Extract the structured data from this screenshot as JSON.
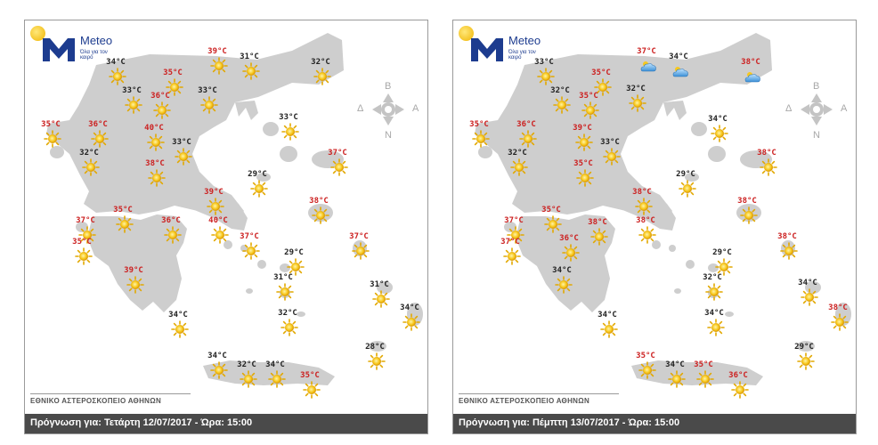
{
  "colors": {
    "land": "#cecece",
    "sea": "#ffffff",
    "hot": "#cc2020",
    "normal": "#222222",
    "footer": "#4a4a4a"
  },
  "logo": {
    "name": "Meteo",
    "tagline": "Όλα για τον καιρό"
  },
  "compass": {
    "north": "Β",
    "south": "Ν",
    "west": "Δ",
    "east": "Α"
  },
  "footer_caption": "ΕΘΝΙΚΟ ΑΣΤΕΡΟΣΚΟΠΕΙΟ ΑΘΗΝΩΝ",
  "panels": [
    {
      "forecast": "Πρόγνωση για: Τετάρτη 12/07/2017 - Ώρα:  15:00",
      "points": [
        {
          "t": "34°C",
          "hot": false,
          "icon": "sun-icon"
        },
        {
          "t": "39°C",
          "hot": true,
          "icon": "sun-icon"
        },
        {
          "t": "31°C",
          "hot": false,
          "icon": "sun-icon"
        },
        {
          "t": "32°C",
          "hot": false,
          "icon": "sun-icon"
        },
        {
          "t": "35°C",
          "hot": true,
          "icon": "sun-icon"
        },
        {
          "t": "33°C",
          "hot": false,
          "icon": "sun-icon"
        },
        {
          "t": "36°C",
          "hot": true,
          "icon": "sun-icon"
        },
        {
          "t": "33°C",
          "hot": false,
          "icon": "sun-icon"
        },
        {
          "t": "35°C",
          "hot": true,
          "icon": "sun-icon"
        },
        {
          "t": "36°C",
          "hot": true,
          "icon": "sun-icon"
        },
        {
          "t": "40°C",
          "hot": true,
          "icon": "sun-icon"
        },
        {
          "t": "33°C",
          "hot": false,
          "icon": "sun-icon"
        },
        {
          "t": "33°C",
          "hot": false,
          "icon": "sun-icon"
        },
        {
          "t": "32°C",
          "hot": false,
          "icon": "sun-icon"
        },
        {
          "t": "38°C",
          "hot": true,
          "icon": "sun-icon"
        },
        {
          "t": "37°C",
          "hot": true,
          "icon": "sun-icon"
        },
        {
          "t": "29°C",
          "hot": false,
          "icon": "sun-icon"
        },
        {
          "t": "39°C",
          "hot": true,
          "icon": "sun-icon"
        },
        {
          "t": "38°C",
          "hot": true,
          "icon": "sun-icon"
        },
        {
          "t": "37°C",
          "hot": true,
          "icon": "sun-icon"
        },
        {
          "t": "35°C",
          "hot": true,
          "icon": "sun-icon"
        },
        {
          "t": "36°C",
          "hot": true,
          "icon": "sun-icon"
        },
        {
          "t": "40°C",
          "hot": true,
          "icon": "sun-icon"
        },
        {
          "t": "37°C",
          "hot": true,
          "icon": "sun-icon"
        },
        {
          "t": "37°C",
          "hot": true,
          "icon": "sun-icon"
        },
        {
          "t": "35°C",
          "hot": true,
          "icon": "sun-icon"
        },
        {
          "t": "29°C",
          "hot": false,
          "icon": "sun-icon"
        },
        {
          "t": "39°C",
          "hot": true,
          "icon": "sun-icon"
        },
        {
          "t": "31°C",
          "hot": false,
          "icon": "sun-icon"
        },
        {
          "t": "31°C",
          "hot": false,
          "icon": "sun-icon"
        },
        {
          "t": "34°C",
          "hot": false,
          "icon": "sun-icon"
        },
        {
          "t": "34°C",
          "hot": false,
          "icon": "sun-icon"
        },
        {
          "t": "32°C",
          "hot": false,
          "icon": "sun-icon"
        },
        {
          "t": "28°C",
          "hot": false,
          "icon": "sun-icon"
        },
        {
          "t": "34°C",
          "hot": false,
          "icon": "sun-icon"
        },
        {
          "t": "32°C",
          "hot": false,
          "icon": "sun-icon"
        },
        {
          "t": "34°C",
          "hot": false,
          "icon": "sun-icon"
        },
        {
          "t": "35°C",
          "hot": true,
          "icon": "sun-icon"
        }
      ]
    },
    {
      "forecast": "Πρόγνωση για: Πέμπτη 13/07/2017 - Ώρα:  15:00",
      "points": [
        {
          "t": "33°C",
          "hot": false,
          "icon": "sun-icon"
        },
        {
          "t": "37°C",
          "hot": true,
          "icon": "cloud-sun-icon"
        },
        {
          "t": "34°C",
          "hot": false,
          "icon": "cloud-sun-icon"
        },
        {
          "t": "38°C",
          "hot": true,
          "icon": "cloud-sun-icon"
        },
        {
          "t": "35°C",
          "hot": true,
          "icon": "sun-icon"
        },
        {
          "t": "32°C",
          "hot": false,
          "icon": "sun-icon"
        },
        {
          "t": "35°C",
          "hot": true,
          "icon": "sun-icon"
        },
        {
          "t": "32°C",
          "hot": false,
          "icon": "sun-icon"
        },
        {
          "t": "35°C",
          "hot": true,
          "icon": "sun-icon"
        },
        {
          "t": "36°C",
          "hot": true,
          "icon": "sun-icon"
        },
        {
          "t": "39°C",
          "hot": true,
          "icon": "sun-icon"
        },
        {
          "t": "33°C",
          "hot": false,
          "icon": "sun-icon"
        },
        {
          "t": "34°C",
          "hot": false,
          "icon": "sun-icon"
        },
        {
          "t": "32°C",
          "hot": false,
          "icon": "sun-icon"
        },
        {
          "t": "35°C",
          "hot": true,
          "icon": "sun-icon"
        },
        {
          "t": "38°C",
          "hot": true,
          "icon": "sun-icon"
        },
        {
          "t": "29°C",
          "hot": false,
          "icon": "sun-icon"
        },
        {
          "t": "38°C",
          "hot": true,
          "icon": "sun-icon"
        },
        {
          "t": "38°C",
          "hot": true,
          "icon": "sun-icon"
        },
        {
          "t": "37°C",
          "hot": true,
          "icon": "sun-icon"
        },
        {
          "t": "35°C",
          "hot": true,
          "icon": "sun-icon"
        },
        {
          "t": "38°C",
          "hot": true,
          "icon": "sun-icon"
        },
        {
          "t": "38°C",
          "hot": true,
          "icon": "sun-icon"
        },
        {
          "t": "36°C",
          "hot": true,
          "icon": "sun-icon"
        },
        {
          "t": "38°C",
          "hot": true,
          "icon": "sun-icon"
        },
        {
          "t": "37°C",
          "hot": true,
          "icon": "sun-icon"
        },
        {
          "t": "29°C",
          "hot": false,
          "icon": "sun-icon"
        },
        {
          "t": "34°C",
          "hot": false,
          "icon": "sun-icon"
        },
        {
          "t": "32°C",
          "hot": false,
          "icon": "sun-icon"
        },
        {
          "t": "34°C",
          "hot": false,
          "icon": "sun-icon"
        },
        {
          "t": "34°C",
          "hot": false,
          "icon": "sun-icon"
        },
        {
          "t": "34°C",
          "hot": false,
          "icon": "sun-icon"
        },
        {
          "t": "38°C",
          "hot": true,
          "icon": "sun-icon"
        },
        {
          "t": "29°C",
          "hot": false,
          "icon": "sun-icon"
        },
        {
          "t": "35°C",
          "hot": true,
          "icon": "sun-icon"
        },
        {
          "t": "34°C",
          "hot": false,
          "icon": "sun-icon"
        },
        {
          "t": "35°C",
          "hot": true,
          "icon": "sun-icon"
        },
        {
          "t": "36°C",
          "hot": true,
          "icon": "sun-icon"
        }
      ]
    }
  ]
}
